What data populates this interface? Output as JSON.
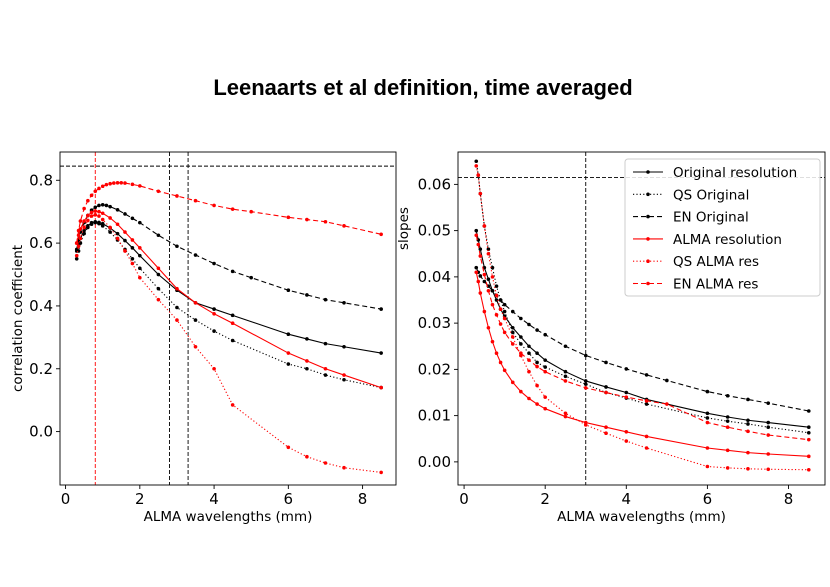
{
  "figure": {
    "title": "Leenaarts et al definition, time averaged"
  },
  "chart_data": [
    {
      "type": "line",
      "panel": "left",
      "xlabel": "ALMA wavelengths (mm)",
      "ylabel": "correlation coefficient",
      "xlim": [
        -0.15,
        8.9
      ],
      "ylim": [
        -0.17,
        0.89
      ],
      "xticks": [
        0,
        2,
        4,
        6,
        8
      ],
      "xtick_labels": [
        "0",
        "2",
        "4",
        "6",
        "8"
      ],
      "yticks": [
        0.0,
        0.2,
        0.4,
        0.6,
        0.8
      ],
      "ytick_labels": [
        "0.0",
        "0.2",
        "0.4",
        "0.6",
        "0.8"
      ],
      "reference_lines": [
        {
          "orientation": "horizontal",
          "value": 0.845,
          "color": "#000000"
        },
        {
          "orientation": "vertical",
          "value": 0.8,
          "color": "#ff0000"
        },
        {
          "orientation": "vertical",
          "value": 2.8,
          "color": "#000000"
        },
        {
          "orientation": "vertical",
          "value": 3.3,
          "color": "#000000"
        }
      ],
      "series": [
        {
          "name": "Original resolution",
          "color": "#000000",
          "dash": "solid",
          "x": [
            0.3,
            0.35,
            0.4,
            0.5,
            0.6,
            0.7,
            0.8,
            0.9,
            1.0,
            1.2,
            1.4,
            1.6,
            1.8,
            2.0,
            2.5,
            3.0,
            3.5,
            4.0,
            4.5,
            6.0,
            6.5,
            7.0,
            7.5,
            8.5
          ],
          "y": [
            0.575,
            0.6,
            0.615,
            0.64,
            0.655,
            0.665,
            0.668,
            0.666,
            0.662,
            0.648,
            0.63,
            0.608,
            0.585,
            0.56,
            0.5,
            0.45,
            0.41,
            0.39,
            0.37,
            0.31,
            0.295,
            0.28,
            0.27,
            0.25
          ]
        },
        {
          "name": "QS Original",
          "color": "#000000",
          "dash": "dotted",
          "x": [
            0.3,
            0.35,
            0.4,
            0.5,
            0.6,
            0.7,
            0.8,
            0.9,
            1.0,
            1.2,
            1.4,
            1.6,
            1.8,
            2.0,
            2.5,
            3.0,
            3.5,
            4.0,
            4.5,
            6.0,
            6.5,
            7.0,
            7.5,
            8.5
          ],
          "y": [
            0.55,
            0.575,
            0.6,
            0.63,
            0.65,
            0.66,
            0.665,
            0.662,
            0.655,
            0.635,
            0.61,
            0.58,
            0.55,
            0.52,
            0.455,
            0.395,
            0.355,
            0.32,
            0.29,
            0.215,
            0.2,
            0.18,
            0.165,
            0.14
          ]
        },
        {
          "name": "EN Original",
          "color": "#000000",
          "dash": "dashed",
          "x": [
            0.3,
            0.35,
            0.4,
            0.5,
            0.6,
            0.7,
            0.8,
            0.9,
            1.0,
            1.1,
            1.2,
            1.4,
            1.6,
            1.8,
            2.0,
            2.5,
            3.0,
            3.5,
            4.0,
            4.5,
            5.0,
            6.0,
            6.5,
            7.0,
            7.5,
            8.5
          ],
          "y": [
            0.58,
            0.61,
            0.635,
            0.665,
            0.688,
            0.705,
            0.714,
            0.72,
            0.722,
            0.72,
            0.716,
            0.706,
            0.693,
            0.679,
            0.665,
            0.625,
            0.59,
            0.562,
            0.535,
            0.51,
            0.49,
            0.45,
            0.435,
            0.42,
            0.41,
            0.39
          ]
        },
        {
          "name": "ALMA resolution",
          "color": "#ff0000",
          "dash": "solid",
          "x": [
            0.3,
            0.35,
            0.4,
            0.5,
            0.6,
            0.7,
            0.8,
            0.9,
            1.0,
            1.2,
            1.4,
            1.6,
            1.8,
            2.0,
            2.5,
            3.0,
            3.5,
            4.0,
            4.5,
            6.0,
            6.5,
            7.0,
            7.5,
            8.5
          ],
          "y": [
            0.6,
            0.625,
            0.645,
            0.67,
            0.688,
            0.698,
            0.702,
            0.7,
            0.695,
            0.68,
            0.66,
            0.635,
            0.61,
            0.585,
            0.52,
            0.455,
            0.41,
            0.375,
            0.345,
            0.25,
            0.225,
            0.2,
            0.18,
            0.14
          ]
        },
        {
          "name": "QS ALMA res",
          "color": "#ff0000",
          "dash": "dotted",
          "x": [
            0.3,
            0.35,
            0.4,
            0.5,
            0.6,
            0.7,
            0.8,
            0.9,
            1.0,
            1.2,
            1.4,
            1.6,
            1.8,
            2.0,
            2.5,
            3.0,
            3.5,
            4.0,
            4.5,
            6.0,
            6.5,
            7.0,
            7.5,
            8.5
          ],
          "y": [
            0.56,
            0.59,
            0.615,
            0.65,
            0.672,
            0.686,
            0.69,
            0.686,
            0.675,
            0.65,
            0.615,
            0.575,
            0.535,
            0.49,
            0.42,
            0.355,
            0.27,
            0.2,
            0.085,
            -0.05,
            -0.08,
            -0.1,
            -0.115,
            -0.13
          ]
        },
        {
          "name": "EN ALMA res",
          "color": "#ff0000",
          "dash": "dashed",
          "x": [
            0.3,
            0.35,
            0.4,
            0.5,
            0.6,
            0.7,
            0.8,
            0.9,
            1.0,
            1.1,
            1.2,
            1.3,
            1.4,
            1.5,
            1.6,
            1.8,
            2.0,
            2.5,
            3.0,
            3.5,
            4.0,
            4.5,
            5.0,
            6.0,
            6.5,
            7.0,
            7.5,
            8.5
          ],
          "y": [
            0.6,
            0.64,
            0.67,
            0.71,
            0.735,
            0.752,
            0.765,
            0.774,
            0.781,
            0.786,
            0.789,
            0.791,
            0.792,
            0.792,
            0.791,
            0.787,
            0.782,
            0.765,
            0.75,
            0.735,
            0.72,
            0.708,
            0.7,
            0.682,
            0.675,
            0.668,
            0.655,
            0.628
          ]
        }
      ]
    },
    {
      "type": "line",
      "panel": "right",
      "xlabel": "ALMA wavelengths (mm)",
      "ylabel": "slopes",
      "xlim": [
        -0.15,
        8.9
      ],
      "ylim": [
        -0.005,
        0.067
      ],
      "xticks": [
        0,
        2,
        4,
        6,
        8
      ],
      "xtick_labels": [
        "0",
        "2",
        "4",
        "6",
        "8"
      ],
      "yticks": [
        0.0,
        0.01,
        0.02,
        0.03,
        0.04,
        0.05,
        0.06
      ],
      "ytick_labels": [
        "0.00",
        "0.01",
        "0.02",
        "0.03",
        "0.04",
        "0.05",
        "0.06"
      ],
      "legend": {
        "location": "upper right"
      },
      "reference_lines": [
        {
          "orientation": "horizontal",
          "value": 0.0615,
          "color": "#000000"
        },
        {
          "orientation": "vertical",
          "value": 3.0,
          "color": "#000000"
        }
      ],
      "series": [
        {
          "name": "Original resolution",
          "color": "#000000",
          "dash": "solid",
          "x": [
            0.3,
            0.35,
            0.4,
            0.5,
            0.6,
            0.7,
            0.8,
            0.9,
            1.0,
            1.2,
            1.4,
            1.6,
            1.8,
            2.0,
            2.5,
            3.0,
            3.5,
            4.0,
            4.5,
            6.0,
            6.5,
            7.0,
            7.5,
            8.5
          ],
          "y": [
            0.05,
            0.048,
            0.046,
            0.042,
            0.0395,
            0.037,
            0.035,
            0.033,
            0.0315,
            0.029,
            0.027,
            0.025,
            0.0235,
            0.022,
            0.0195,
            0.0175,
            0.0162,
            0.015,
            0.0135,
            0.0105,
            0.0097,
            0.009,
            0.0085,
            0.0075
          ]
        },
        {
          "name": "QS Original",
          "color": "#000000",
          "dash": "dotted",
          "x": [
            0.3,
            0.35,
            0.4,
            0.5,
            0.6,
            0.7,
            0.8,
            0.9,
            1.0,
            1.2,
            1.4,
            1.6,
            1.8,
            2.0,
            2.5,
            3.0,
            3.5,
            4.0,
            4.5,
            6.0,
            6.5,
            7.0,
            7.5,
            8.5
          ],
          "y": [
            0.065,
            0.062,
            0.058,
            0.051,
            0.046,
            0.042,
            0.038,
            0.035,
            0.0325,
            0.028,
            0.0255,
            0.0235,
            0.0215,
            0.0205,
            0.0185,
            0.0168,
            0.015,
            0.0138,
            0.0125,
            0.0095,
            0.0088,
            0.0082,
            0.0075,
            0.0063
          ]
        },
        {
          "name": "EN Original",
          "color": "#000000",
          "dash": "dashed",
          "x": [
            0.3,
            0.35,
            0.4,
            0.5,
            0.6,
            0.7,
            0.8,
            0.9,
            1.0,
            1.2,
            1.4,
            1.6,
            1.8,
            2.0,
            2.5,
            3.0,
            3.5,
            4.0,
            4.5,
            5.0,
            6.0,
            6.5,
            7.0,
            7.5,
            8.5
          ],
          "y": [
            0.042,
            0.041,
            0.0402,
            0.039,
            0.038,
            0.037,
            0.036,
            0.035,
            0.034,
            0.0325,
            0.031,
            0.0297,
            0.0285,
            0.0275,
            0.025,
            0.023,
            0.0215,
            0.0201,
            0.0188,
            0.0176,
            0.0152,
            0.0143,
            0.0135,
            0.0127,
            0.011
          ]
        },
        {
          "name": "ALMA resolution",
          "color": "#ff0000",
          "dash": "solid",
          "x": [
            0.3,
            0.35,
            0.4,
            0.5,
            0.6,
            0.7,
            0.8,
            0.9,
            1.0,
            1.2,
            1.4,
            1.6,
            1.8,
            2.0,
            2.5,
            3.0,
            3.5,
            4.0,
            4.5,
            6.0,
            6.5,
            7.0,
            7.5,
            8.5
          ],
          "y": [
            0.041,
            0.039,
            0.0365,
            0.0325,
            0.029,
            0.026,
            0.0235,
            0.0215,
            0.0198,
            0.0172,
            0.0152,
            0.0137,
            0.0125,
            0.0115,
            0.0098,
            0.0085,
            0.0075,
            0.0065,
            0.0055,
            0.003,
            0.0025,
            0.002,
            0.0017,
            0.0012
          ]
        },
        {
          "name": "QS ALMA res",
          "color": "#ff0000",
          "dash": "dotted",
          "x": [
            0.3,
            0.35,
            0.4,
            0.5,
            0.6,
            0.7,
            0.8,
            0.9,
            1.0,
            1.2,
            1.4,
            1.6,
            1.8,
            2.0,
            2.5,
            3.0,
            3.5,
            4.0,
            4.5,
            6.0,
            6.5,
            7.0,
            7.5,
            8.5
          ],
          "y": [
            0.064,
            0.062,
            0.058,
            0.051,
            0.045,
            0.04,
            0.036,
            0.033,
            0.031,
            0.027,
            0.023,
            0.0195,
            0.0165,
            0.014,
            0.0105,
            0.008,
            0.0062,
            0.0045,
            0.003,
            -0.001,
            -0.0013,
            -0.0015,
            -0.0016,
            -0.0017
          ]
        },
        {
          "name": "EN ALMA res",
          "color": "#ff0000",
          "dash": "dashed",
          "x": [
            0.3,
            0.35,
            0.4,
            0.5,
            0.6,
            0.7,
            0.8,
            0.9,
            1.0,
            1.2,
            1.4,
            1.6,
            1.8,
            2.0,
            2.5,
            3.0,
            3.5,
            4.0,
            4.5,
            5.0,
            6.0,
            6.5,
            7.0,
            7.5,
            8.5
          ],
          "y": [
            0.049,
            0.047,
            0.0445,
            0.0405,
            0.037,
            0.034,
            0.0318,
            0.0298,
            0.028,
            0.0255,
            0.0235,
            0.022,
            0.0206,
            0.0195,
            0.0175,
            0.016,
            0.015,
            0.014,
            0.0132,
            0.0125,
            0.0085,
            0.0075,
            0.0066,
            0.0058,
            0.0048
          ]
        }
      ]
    }
  ]
}
